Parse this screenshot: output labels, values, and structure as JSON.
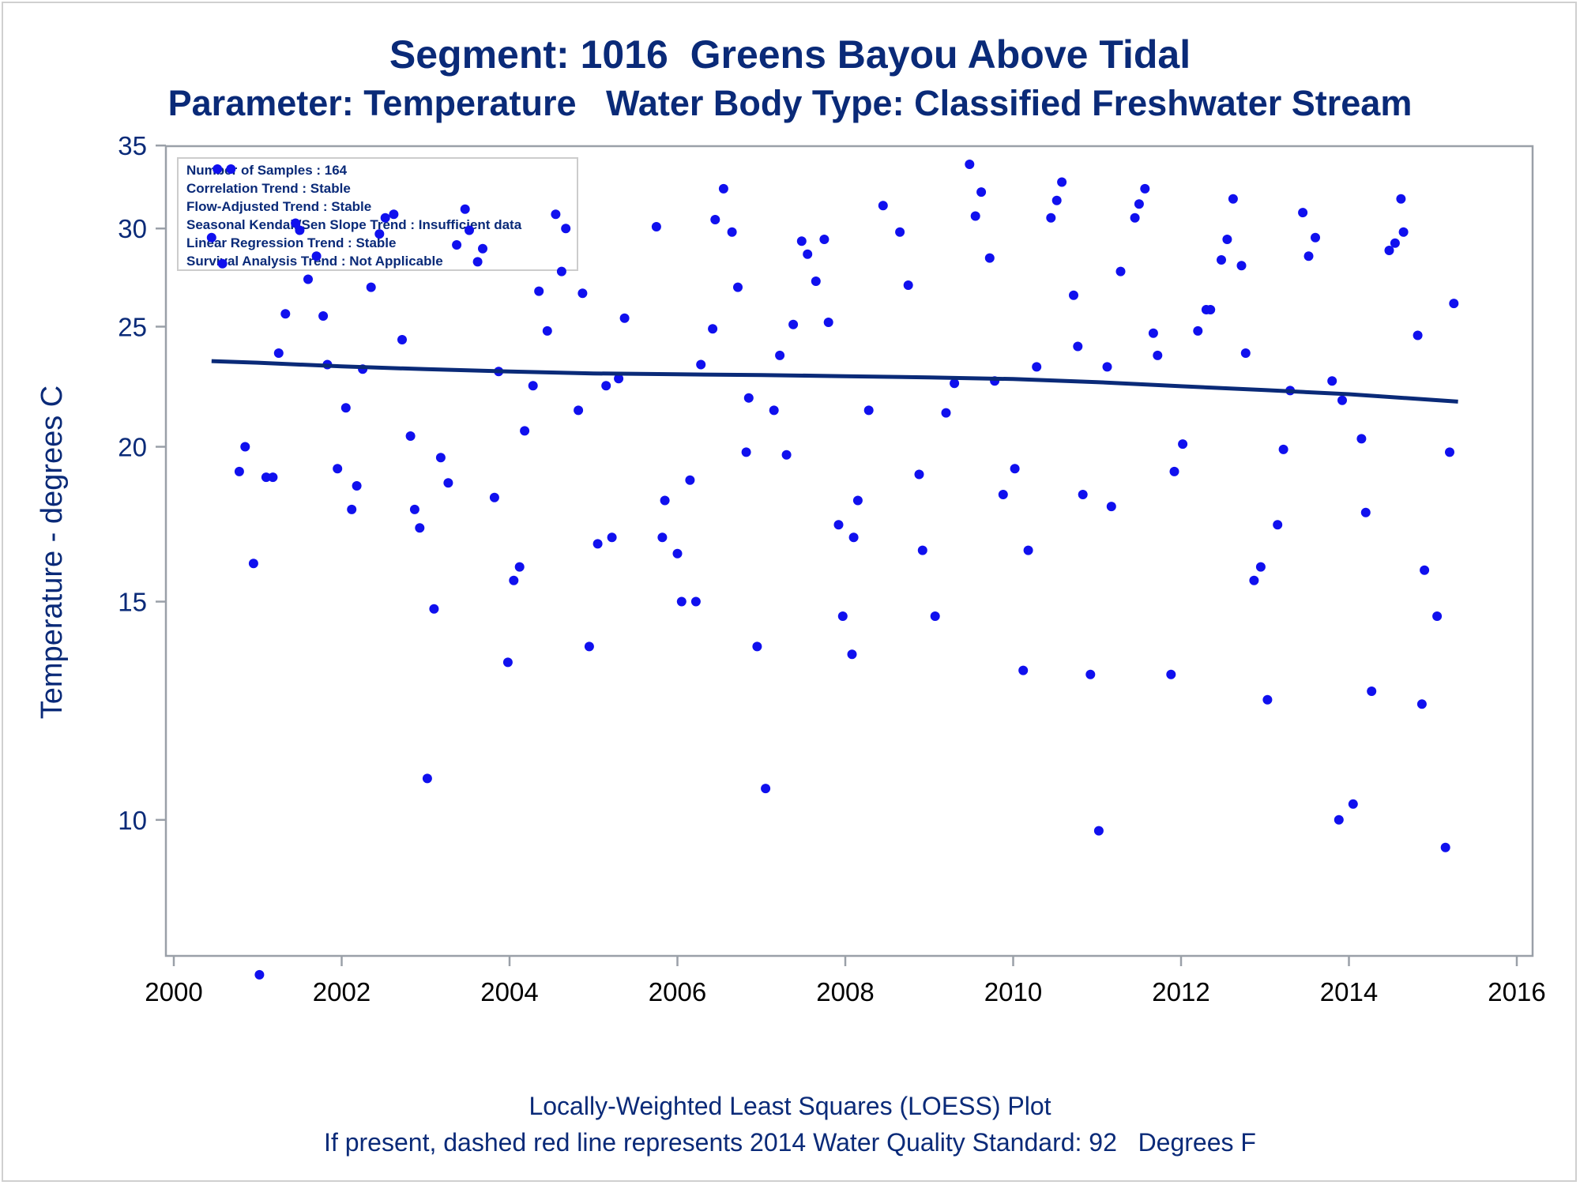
{
  "title_line1": "Segment: 1016  Greens Bayou Above Tidal",
  "title_line2": "Parameter: Temperature   Water Body Type: Classified Freshwater Stream",
  "footnote_line1": "Locally-Weighted Least Squares (LOESS) Plot",
  "footnote_line2": "If present, dashed red line represents 2014 Water Quality Standard: 92   Degrees F",
  "colors": {
    "points": "#1010ee",
    "trend": "#0a2a78",
    "text": "#0a2a78",
    "axis": "#9aa0a8"
  },
  "chart_data": {
    "type": "scatter",
    "ylabel": "Temperature - degrees C",
    "xlabel": "",
    "y_scale": "log",
    "xlim": [
      2000,
      2016
    ],
    "ylim": [
      7.4,
      36
    ],
    "xticks": [
      "2000",
      "2002",
      "2004",
      "2006",
      "2008",
      "2010",
      "2012",
      "2014",
      "2016"
    ],
    "yticks": [
      "10",
      "15",
      "20",
      "25",
      "30",
      "35"
    ],
    "inset_lines": [
      "Number of Samples : 164",
      "Correlation Trend : Stable",
      "Flow-Adjusted Trend : Stable",
      "Seasonal Kendall/Sen Slope Trend : Insufficient data",
      "Linear Regression Trend : Stable",
      "Survival Analysis Trend : Not Applicable"
    ],
    "series": [
      {
        "name": "Samples",
        "x": [
          2000.45,
          2000.52,
          2000.58,
          2000.68,
          2000.78,
          2000.85,
          2000.95,
          2001.02,
          2001.1,
          2001.18,
          2001.25,
          2001.33,
          2001.45,
          2001.5,
          2001.6,
          2001.7,
          2001.78,
          2001.83,
          2001.95,
          2002.05,
          2002.12,
          2002.18,
          2002.25,
          2002.35,
          2002.45,
          2002.52,
          2002.62,
          2002.72,
          2002.82,
          2002.87,
          2002.93,
          2003.02,
          2003.1,
          2003.18,
          2003.27,
          2003.37,
          2003.47,
          2003.52,
          2003.62,
          2003.68,
          2003.82,
          2003.87,
          2003.98,
          2004.05,
          2004.12,
          2004.18,
          2004.28,
          2004.35,
          2004.45,
          2004.55,
          2004.62,
          2004.67,
          2004.82,
          2004.87,
          2004.95,
          2005.05,
          2005.15,
          2005.22,
          2005.3,
          2005.37,
          2005.75,
          2005.82,
          2005.85,
          2006.0,
          2006.05,
          2006.15,
          2006.22,
          2006.28,
          2006.42,
          2006.45,
          2006.55,
          2006.65,
          2006.72,
          2006.82,
          2006.85,
          2006.95,
          2007.05,
          2007.15,
          2007.22,
          2007.3,
          2007.38,
          2007.48,
          2007.55,
          2007.65,
          2007.75,
          2007.8,
          2007.92,
          2007.97,
          2008.08,
          2008.1,
          2008.15,
          2008.28,
          2008.45,
          2008.65,
          2008.75,
          2008.88,
          2008.92,
          2009.07,
          2009.2,
          2009.3,
          2009.48,
          2009.55,
          2009.62,
          2009.72,
          2009.78,
          2009.88,
          2010.02,
          2010.12,
          2010.18,
          2010.28,
          2010.45,
          2010.52,
          2010.58,
          2010.72,
          2010.77,
          2010.83,
          2010.92,
          2011.02,
          2011.12,
          2011.17,
          2011.28,
          2011.45,
          2011.5,
          2011.57,
          2011.67,
          2011.72,
          2011.88,
          2011.92,
          2012.02,
          2012.2,
          2012.3,
          2012.35,
          2012.48,
          2012.55,
          2012.62,
          2012.72,
          2012.77,
          2012.87,
          2012.95,
          2013.03,
          2013.15,
          2013.22,
          2013.3,
          2013.45,
          2013.52,
          2013.6,
          2013.8,
          2013.88,
          2013.92,
          2014.05,
          2014.15,
          2014.2,
          2014.27,
          2014.48,
          2014.55,
          2014.62,
          2014.65,
          2014.82,
          2014.87,
          2014.9,
          2015.05,
          2015.15,
          2015.2,
          2015.25
        ],
        "y": [
          29.5,
          33.5,
          28.1,
          33.5,
          19.1,
          20.0,
          16.1,
          7.5,
          18.9,
          18.9,
          23.8,
          25.6,
          30.3,
          29.9,
          27.3,
          28.5,
          25.5,
          23.3,
          19.2,
          21.5,
          17.8,
          18.6,
          23.1,
          26.9,
          29.7,
          30.6,
          30.8,
          24.4,
          20.4,
          17.8,
          17.2,
          10.8,
          14.8,
          19.6,
          18.7,
          29.1,
          31.1,
          29.9,
          28.2,
          28.9,
          18.2,
          23.0,
          13.4,
          15.6,
          16.0,
          20.6,
          22.4,
          26.7,
          24.8,
          30.8,
          27.7,
          30.0,
          21.4,
          26.6,
          13.8,
          16.7,
          22.4,
          16.9,
          22.7,
          25.4,
          30.1,
          16.9,
          18.1,
          16.4,
          15.0,
          18.8,
          15.0,
          23.3,
          24.9,
          30.5,
          32.3,
          29.8,
          26.9,
          19.8,
          21.9,
          13.8,
          10.6,
          21.4,
          23.7,
          19.7,
          25.1,
          29.3,
          28.6,
          27.2,
          29.4,
          25.2,
          17.3,
          14.6,
          13.6,
          16.9,
          18.1,
          21.4,
          31.3,
          29.8,
          27.0,
          19.0,
          16.5,
          14.6,
          21.3,
          22.5,
          33.8,
          30.7,
          32.1,
          28.4,
          22.6,
          18.3,
          19.2,
          13.2,
          16.5,
          23.2,
          30.6,
          31.6,
          32.7,
          26.5,
          24.1,
          18.3,
          13.1,
          9.8,
          23.2,
          17.9,
          27.7,
          30.6,
          31.4,
          32.3,
          24.7,
          23.7,
          13.1,
          19.1,
          20.1,
          24.8,
          25.8,
          25.8,
          28.3,
          29.4,
          31.7,
          28.0,
          23.8,
          15.6,
          16.0,
          12.5,
          17.3,
          19.9,
          22.2,
          30.9,
          28.5,
          29.5,
          22.6,
          10.0,
          21.8,
          10.3,
          20.3,
          17.7,
          12.7,
          28.8,
          29.2,
          31.7,
          29.8,
          24.6,
          12.4,
          15.9,
          14.6,
          9.5,
          19.8,
          26.1
        ]
      },
      {
        "name": "LOESS",
        "x": [
          2000.45,
          2001.0,
          2002.0,
          2003.0,
          2004.0,
          2005.0,
          2006.0,
          2007.0,
          2008.0,
          2009.0,
          2010.0,
          2011.0,
          2012.0,
          2013.0,
          2014.0,
          2015.3
        ],
        "y": [
          23.45,
          23.38,
          23.22,
          23.1,
          23.0,
          22.92,
          22.88,
          22.85,
          22.8,
          22.75,
          22.68,
          22.55,
          22.38,
          22.22,
          22.05,
          21.75
        ]
      }
    ]
  }
}
